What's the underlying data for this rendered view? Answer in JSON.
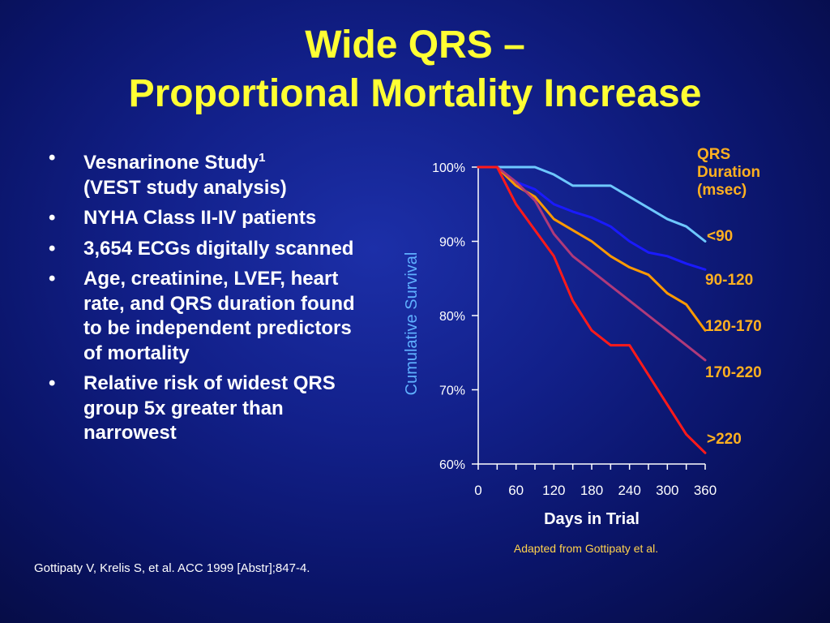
{
  "title": {
    "line1": "Wide QRS –",
    "line2": "Proportional Mortality Increase"
  },
  "bullets": [
    {
      "main": "Vesnarinone Study",
      "sup": "1",
      "sub": "(VEST study analysis)"
    },
    {
      "main": "NYHA Class II-IV patients"
    },
    {
      "main": "3,654 ECGs digitally scanned"
    },
    {
      "main": "Age, creatinine, LVEF, heart rate, and QRS duration found to be independent predictors of mortality"
    },
    {
      "main": "Relative risk of widest QRS group 5x greater than narrowest"
    }
  ],
  "footnote": "Gottipaty V, Krelis S, et al. ACC 1999 [Abstr];847-4.",
  "credit": "Adapted from Gottipaty et al.",
  "chart_data": {
    "type": "line",
    "xlabel": "Days in Trial",
    "ylabel": "Cumulative Survival",
    "xticks": [
      0,
      60,
      120,
      180,
      240,
      300,
      360
    ],
    "xlim": [
      0,
      360
    ],
    "yticks": [
      60,
      70,
      80,
      90,
      100
    ],
    "ytick_labels": [
      "60%",
      "70%",
      "80%",
      "90%",
      "100%"
    ],
    "ylim": [
      60,
      100
    ],
    "legend_title": "QRS Duration (msec)",
    "series": [
      {
        "name": "<90",
        "color": "#6ec8ff",
        "x": [
          0,
          30,
          60,
          90,
          120,
          150,
          180,
          210,
          240,
          270,
          300,
          330,
          360
        ],
        "y": [
          100,
          100,
          100,
          100,
          99,
          97.5,
          97.5,
          97.5,
          96,
          94.5,
          93,
          92,
          90
        ]
      },
      {
        "name": "90-120",
        "color": "#1a1aff",
        "x": [
          0,
          30,
          60,
          90,
          120,
          150,
          180,
          210,
          240,
          270,
          300,
          330,
          360
        ],
        "y": [
          100,
          100,
          98,
          97,
          95,
          94,
          93.2,
          92,
          90,
          88.5,
          88,
          87,
          86.2
        ]
      },
      {
        "name": "120-170",
        "color": "#ff9a00",
        "x": [
          0,
          30,
          60,
          90,
          120,
          150,
          180,
          210,
          240,
          270,
          300,
          330,
          360
        ],
        "y": [
          100,
          100,
          97.5,
          96,
          93,
          91.5,
          90,
          88,
          86.5,
          85.5,
          83,
          81.5,
          78
        ]
      },
      {
        "name": "170-220",
        "color": "#b03a7a",
        "x": [
          0,
          30,
          60,
          90,
          120,
          150,
          180,
          210,
          240,
          270,
          300,
          330,
          360
        ],
        "y": [
          100,
          100,
          98,
          95.5,
          91,
          88,
          86,
          84,
          82,
          80,
          78,
          76,
          74
        ]
      },
      {
        "name": ">220",
        "color": "#ff1a1a",
        "x": [
          0,
          30,
          60,
          90,
          120,
          150,
          180,
          210,
          240,
          270,
          300,
          330,
          360
        ],
        "y": [
          100,
          100,
          95,
          91.5,
          88,
          82,
          78,
          76,
          76,
          72,
          68,
          64,
          61.5
        ]
      }
    ]
  }
}
